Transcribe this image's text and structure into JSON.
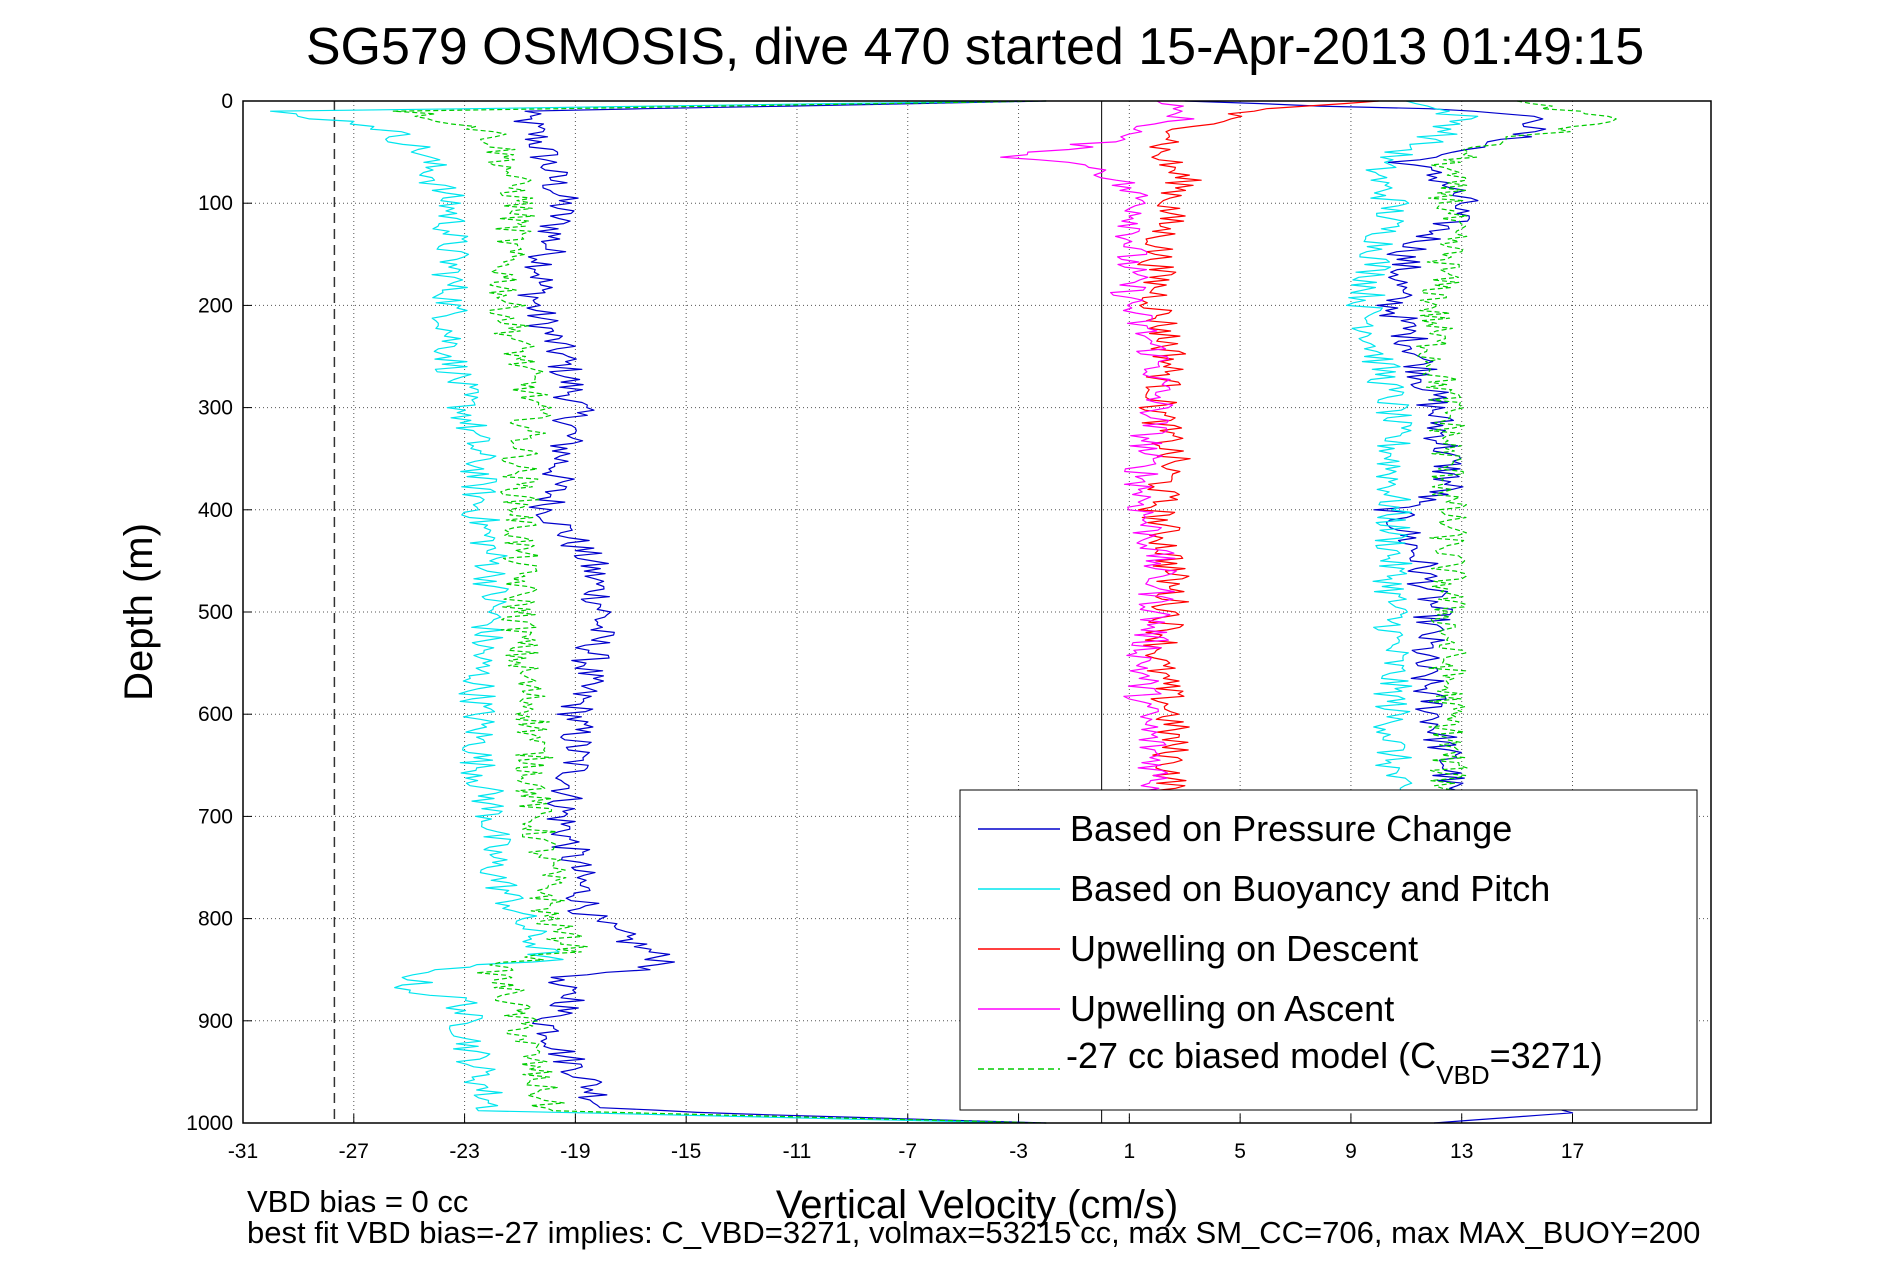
{
  "chart_data": {
    "type": "line",
    "title": "SG579 OSMOSIS, dive 470 started 15-Apr-2013 01:49:15",
    "xlabel": "Vertical Velocity (cm/s)",
    "ylabel": "Depth (m)",
    "xlim": [
      -31,
      22
    ],
    "ylim": [
      1000,
      0
    ],
    "y_reversed": true,
    "grid": true,
    "x_ticks": [
      -31,
      -27,
      -23,
      -19,
      -15,
      -11,
      -7,
      -3,
      1,
      5,
      9,
      13,
      17
    ],
    "y_ticks": [
      0,
      100,
      200,
      300,
      400,
      500,
      600,
      700,
      800,
      900,
      1000
    ],
    "vbd_bias_marker": -27.7,
    "zero_line": 0,
    "footnotes": {
      "line1": "VBD bias = 0 cc",
      "line2": "best fit VBD bias=-27 implies: C_VBD=3271, volmax=53215 cc, max SM_CC=706, max MAX_BUOY=200"
    },
    "legend": {
      "position": "bottom-right",
      "entries": [
        {
          "label": "Based on Pressure Change",
          "color": "#0000cc",
          "style": "solid"
        },
        {
          "label": "Based on Buoyancy and Pitch",
          "color": "#00e5ee",
          "style": "solid"
        },
        {
          "label": "Upwelling on Descent",
          "color": "#ff0000",
          "style": "solid"
        },
        {
          "label": "Upwelling on Ascent",
          "color": "#ff00ff",
          "style": "solid"
        },
        {
          "label": "-27 cc biased model (C",
          "sub": "VBD",
          "tail": "=3271)",
          "color": "#00cc00",
          "style": "dashed"
        }
      ]
    },
    "series": [
      {
        "name": "Based on Pressure Change",
        "color": "#0000cc",
        "dash": false,
        "depth": [
          0,
          10,
          30,
          60,
          100,
          150,
          200,
          250,
          300,
          350,
          400,
          450,
          500,
          550,
          600,
          650,
          700,
          750,
          800,
          830,
          845,
          860,
          880,
          900,
          930,
          960,
          985,
          992,
          1000
        ],
        "velocity": [
          -2,
          -21,
          -20.5,
          -20,
          -19.5,
          -20,
          -20.5,
          -19.5,
          -19,
          -19.5,
          -20,
          -18.5,
          -18,
          -18.5,
          -19,
          -19,
          -19.5,
          -19,
          -18.5,
          -16.5,
          -15.5,
          -20,
          -19,
          -20,
          -19.5,
          -18.5,
          -18,
          -12,
          -2
        ]
      },
      {
        "name": "",
        "color": "#0000cc",
        "dash": false,
        "depth": [
          0,
          10,
          20,
          40,
          60,
          80,
          100,
          120,
          150,
          200,
          250,
          300,
          350,
          380,
          400,
          450,
          500,
          550,
          600,
          650,
          700,
          800,
          900,
          950,
          990,
          1000
        ],
        "velocity": [
          3,
          14,
          16,
          14.5,
          11,
          12.5,
          13,
          12.5,
          11,
          10.5,
          11.5,
          12,
          12.5,
          12.5,
          10.5,
          11.5,
          12,
          11.5,
          12,
          12.5,
          12.5,
          12.5,
          12.5,
          12.5,
          17,
          12
        ]
      },
      {
        "name": "Based on Buoyancy and Pitch",
        "color": "#00e5ee",
        "dash": false,
        "depth": [
          0,
          10,
          25,
          50,
          80,
          100,
          150,
          200,
          250,
          300,
          350,
          400,
          450,
          500,
          550,
          600,
          650,
          700,
          750,
          800,
          840,
          850,
          870,
          880,
          900,
          950,
          988,
          1000
        ],
        "velocity": [
          -3,
          -30,
          -26,
          -24.5,
          -24,
          -23.5,
          -23.5,
          -23.5,
          -23.5,
          -23,
          -22.5,
          -22.5,
          -22,
          -22,
          -22.5,
          -22.5,
          -22.5,
          -22,
          -22,
          -21,
          -20,
          -24.5,
          -25,
          -23,
          -23,
          -22.5,
          -22,
          -3
        ]
      },
      {
        "name": "",
        "color": "#00e5ee",
        "dash": false,
        "depth": [
          0,
          15,
          30,
          60,
          80,
          100,
          150,
          200,
          250,
          300,
          350,
          400,
          500,
          600,
          700
        ],
        "velocity": [
          11,
          13,
          12.5,
          10,
          10,
          10.5,
          10,
          9.5,
          10,
          10.5,
          10.5,
          10.5,
          10.5,
          10.5,
          10.5
        ]
      },
      {
        "name": "Upwelling on Descent",
        "color": "#ff0000",
        "dash": false,
        "depth": [
          0,
          10,
          30,
          50,
          80,
          100,
          150,
          200,
          250,
          300,
          350,
          400,
          450,
          500,
          550,
          600,
          650,
          680
        ],
        "velocity": [
          10,
          5,
          3,
          2,
          3,
          2.5,
          2,
          2,
          2.5,
          2,
          2.5,
          2,
          2.5,
          2.5,
          2,
          2.5,
          2.5,
          2.5
        ]
      },
      {
        "name": "Upwelling on Ascent",
        "color": "#ff00ff",
        "dash": false,
        "depth": [
          0,
          15,
          40,
          55,
          65,
          100,
          150,
          200,
          250,
          300,
          350,
          400,
          450,
          500,
          550,
          600,
          650,
          680
        ],
        "velocity": [
          2,
          3,
          0,
          -3,
          0,
          1.5,
          1,
          1,
          2,
          2,
          1.5,
          1.5,
          2,
          2,
          1.5,
          1.5,
          2,
          2
        ]
      },
      {
        "name": "-27 cc biased model (C_VBD=3271)",
        "color": "#00cc00",
        "dash": true,
        "depth": [
          0,
          10,
          30,
          60,
          100,
          150,
          200,
          250,
          300,
          350,
          400,
          450,
          500,
          550,
          600,
          650,
          700,
          750,
          800,
          830,
          848,
          870,
          900,
          950,
          988,
          1000
        ],
        "velocity": [
          -2,
          -25,
          -22,
          -21.5,
          -21,
          -21.5,
          -21.5,
          -21,
          -20.5,
          -21,
          -21,
          -21,
          -21,
          -21,
          -20.5,
          -20.5,
          -20.5,
          -20,
          -20,
          -19,
          -22,
          -21.5,
          -21,
          -20.5,
          -20,
          -2
        ]
      },
      {
        "name": "",
        "color": "#00cc00",
        "dash": true,
        "depth": [
          0,
          10,
          20,
          40,
          60,
          80,
          100,
          150,
          200,
          250,
          300,
          350,
          400,
          450,
          500,
          600,
          700
        ],
        "velocity": [
          15,
          17,
          18.5,
          14,
          12.5,
          12.5,
          12.5,
          12.5,
          12,
          12,
          12.5,
          12.5,
          12.5,
          12.5,
          12.5,
          12.5,
          12.5
        ]
      }
    ]
  }
}
